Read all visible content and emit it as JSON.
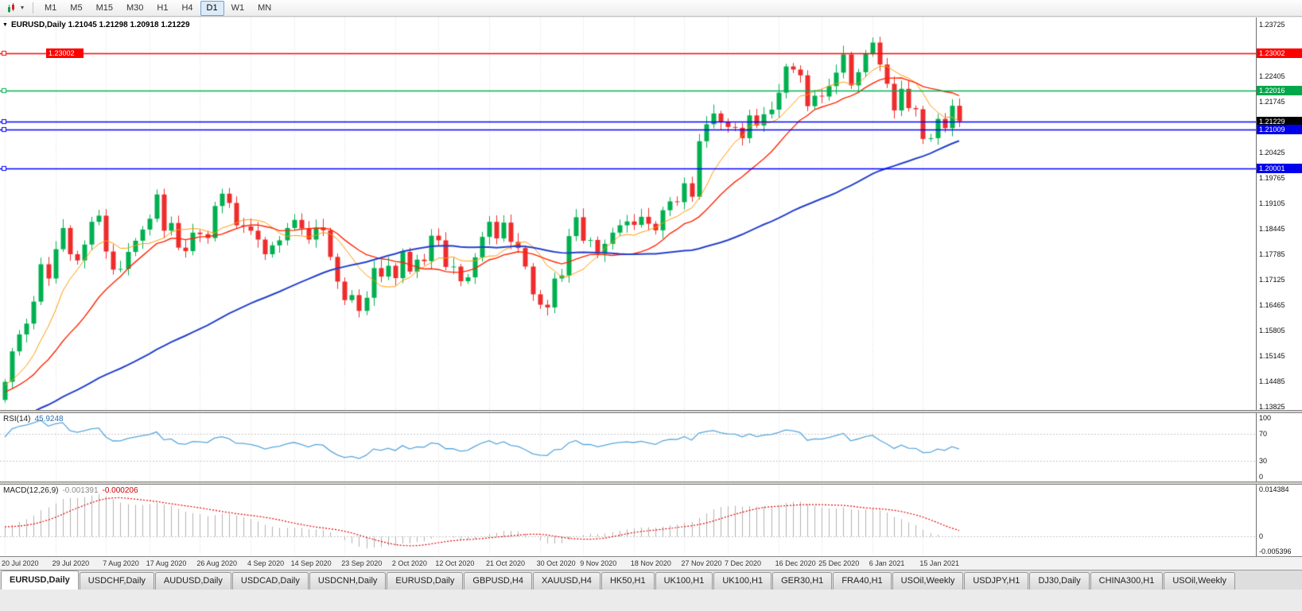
{
  "toolbar": {
    "timeframes": [
      "M1",
      "M5",
      "M15",
      "M30",
      "H1",
      "H4",
      "D1",
      "W1",
      "MN"
    ],
    "active": "D1"
  },
  "icons": {
    "collapse_triangle": "▼",
    "dropdown_caret": "▾"
  },
  "chart": {
    "symbol": "EURUSD,Daily",
    "title_text": "EURUSD,Daily 1.21045 1.21298 1.20918 1.21229",
    "open": "1.21045",
    "high": "1.21298",
    "low": "1.20918",
    "close": "1.21229"
  },
  "indicators": {
    "rsi": {
      "name": "RSI(14)",
      "value": "45.9248"
    },
    "macd": {
      "name": "MACD(12,26,9)",
      "main_value": "-0.001391",
      "signal_value": "-0.000206"
    }
  },
  "tabs": {
    "active_index": 0,
    "items": [
      "EURUSD,Daily",
      "USDCHF,Daily",
      "AUDUSD,Daily",
      "USDCAD,Daily",
      "USDCNH,Daily",
      "EURUSD,Daily",
      "GBPUSD,H4",
      "XAUUSD,H4",
      "HK50,H1",
      "UK100,H1",
      "UK100,H1",
      "GER30,H1",
      "FRA40,H1",
      "USOil,Weekly",
      "USDJPY,H1",
      "DJ30,Daily",
      "CHINA300,H1",
      "USOil,Weekly"
    ]
  },
  "chart_data": {
    "type": "candlestick",
    "symbol": "EURUSD",
    "timeframe": "Daily",
    "price_range": {
      "max": 1.2392,
      "min": 1.1374
    },
    "price_ticks": [
      1.23725,
      1.22405,
      1.21745,
      1.20425,
      1.19765,
      1.19105,
      1.18445,
      1.17785,
      1.17125,
      1.16465,
      1.15805,
      1.15145,
      1.14485,
      1.13825
    ],
    "x_labels": [
      "20 Jul 2020",
      "29 Jul 2020",
      "7 Aug 2020",
      "17 Aug 2020",
      "26 Aug 2020",
      "4 Sep 2020",
      "14 Sep 2020",
      "23 Sep 2020",
      "2 Oct 2020",
      "12 Oct 2020",
      "21 Oct 2020",
      "30 Oct 2020",
      "9 Nov 2020",
      "18 Nov 2020",
      "27 Nov 2020",
      "7 Dec 2020",
      "16 Dec 2020",
      "25 Dec 2020",
      "6 Jan 2021",
      "15 Jan 2021"
    ],
    "x_label_indices": [
      0,
      7,
      14,
      20,
      27,
      34,
      40,
      47,
      54,
      60,
      67,
      74,
      80,
      87,
      94,
      100,
      107,
      113,
      120,
      127
    ],
    "first_open": 1.14,
    "closes": [
      1.1447,
      1.1526,
      1.157,
      1.1598,
      1.1655,
      1.1752,
      1.1715,
      1.1791,
      1.1846,
      1.1778,
      1.1762,
      1.1803,
      1.1862,
      1.1878,
      1.1785,
      1.1738,
      1.174,
      1.1784,
      1.1813,
      1.1842,
      1.187,
      1.1933,
      1.1839,
      1.1859,
      1.1795,
      1.1786,
      1.1834,
      1.183,
      1.182,
      1.1903,
      1.1935,
      1.1911,
      1.1853,
      1.185,
      1.1839,
      1.1816,
      1.1778,
      1.1801,
      1.1814,
      1.1846,
      1.1867,
      1.1845,
      1.1816,
      1.1847,
      1.184,
      1.1771,
      1.1707,
      1.1659,
      1.1672,
      1.1631,
      1.1665,
      1.1742,
      1.172,
      1.1748,
      1.1716,
      1.1784,
      1.1733,
      1.1764,
      1.176,
      1.1826,
      1.1814,
      1.1745,
      1.1746,
      1.1708,
      1.1718,
      1.177,
      1.1823,
      1.1862,
      1.1819,
      1.186,
      1.181,
      1.1794,
      1.1746,
      1.1674,
      1.1647,
      1.164,
      1.1715,
      1.1723,
      1.1825,
      1.1874,
      1.1813,
      1.1815,
      1.1779,
      1.1805,
      1.1834,
      1.1853,
      1.1863,
      1.1854,
      1.1875,
      1.1857,
      1.184,
      1.1892,
      1.1915,
      1.1913,
      1.1962,
      1.1927,
      1.2071,
      1.2115,
      1.2143,
      1.2121,
      1.2108,
      1.2106,
      1.2079,
      1.2138,
      1.2112,
      1.2141,
      1.2153,
      1.2197,
      1.2265,
      1.2257,
      1.2242,
      1.2162,
      1.2189,
      1.2187,
      1.2214,
      1.2249,
      1.2296,
      1.2216,
      1.225,
      1.2297,
      1.2327,
      1.227,
      1.222,
      1.2151,
      1.2207,
      1.2157,
      1.2154,
      1.2077,
      1.2079,
      1.2129,
      1.2105,
      1.2163,
      1.21229
    ],
    "moving_averages": [
      {
        "period": 8,
        "color": "#ff9900",
        "width": 1
      },
      {
        "period": 17,
        "color": "#ff2400",
        "width": 1.4
      },
      {
        "period": 55,
        "color": "#2440cc",
        "width": 2
      }
    ],
    "hlines": [
      {
        "price": 1.23002,
        "color": "#ff0000",
        "label": "1.23002",
        "badge_bg": "#ff0000",
        "left_label": true,
        "line_width": 1.6
      },
      {
        "price": 1.22016,
        "color": "#00b050",
        "label": "1.22016",
        "badge_bg": "#00a84c",
        "left_label": false,
        "line_width": 1.6
      },
      {
        "price": 1.21229,
        "color": "#0000ff",
        "label": "1.21229",
        "badge_bg": "#000000",
        "left_label": false,
        "line_width": 1.4
      },
      {
        "price": 1.21009,
        "color": "#0000ff",
        "label": "1.21009",
        "badge_bg": "#0000ee",
        "left_label": false,
        "line_width": 1.4
      },
      {
        "price": 1.20001,
        "color": "#0000ff",
        "label": "1.20001",
        "badge_bg": "#0000ee",
        "left_label": false,
        "line_width": 1.4
      }
    ],
    "rsi_levels": [
      70,
      30
    ],
    "rsi_ticks": [
      100,
      70,
      30,
      0
    ],
    "macd_ticks": [
      {
        "label": "0.014384",
        "value": 0.014384
      },
      {
        "label": "0",
        "value": 0
      },
      {
        "label": "-0.005396",
        "value": -0.005396
      }
    ],
    "colors": {
      "up": "#00b050",
      "down": "#ee2c2c",
      "rsi_line": "#58a6dc",
      "macd_hist": "#b2b2b2",
      "macd_signal": "#e00000",
      "grid": "#dadada",
      "level_dots": "#c6c6c6"
    }
  }
}
